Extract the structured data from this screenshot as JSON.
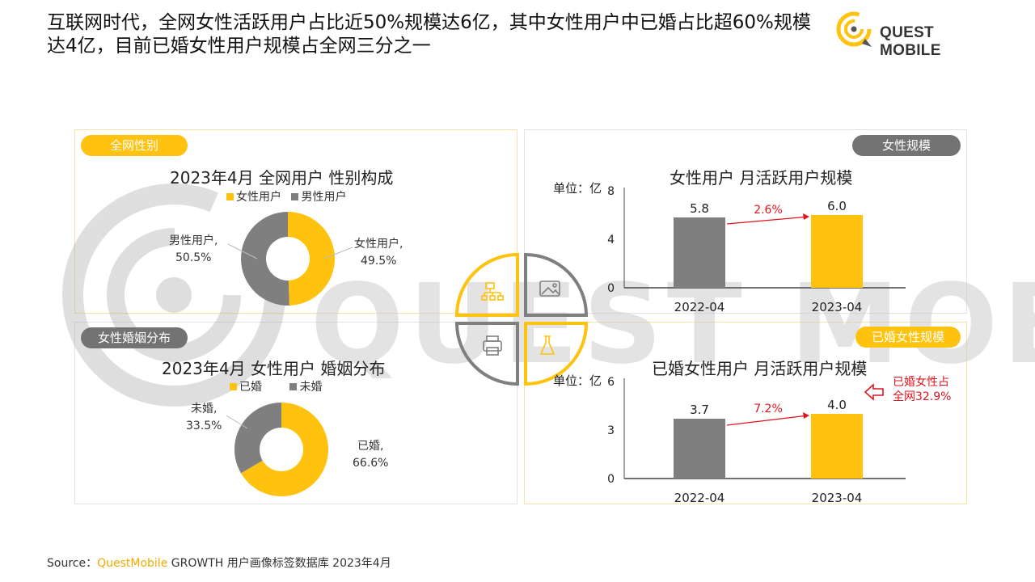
{
  "title": "互联网时代，全网女性活跃用户占比近50%规模达6亿，其中女性用户中已婚占比超60%规模达4亿，目前已婚女性用户规模占全网三分之一",
  "logo": {
    "text": "QUEST MOBILE"
  },
  "watermark": {
    "text": "QUEST MOBILE"
  },
  "colors": {
    "accent": "#ffc20e",
    "gray": "#7f7f7f",
    "red": "#e0141e"
  },
  "panels": {
    "gender": {
      "tag": "全网性别",
      "chart_title": "2023年4月 全网用户 性别构成",
      "legend": [
        "女性用户",
        "男性用户"
      ],
      "labels": [
        {
          "name": "女性用户,",
          "value": "49.5%"
        },
        {
          "name": "男性用户,",
          "value": "50.5%"
        }
      ]
    },
    "marriage": {
      "tag": "女性婚姻分布",
      "chart_title": "2023年4月 女性用户 婚姻分布",
      "legend": [
        "已婚",
        "未婚"
      ],
      "labels": [
        {
          "name": "已婚,",
          "value": "66.6%"
        },
        {
          "name": "未婚,",
          "value": "33.5%"
        }
      ]
    },
    "female_scale": {
      "tag": "女性规模",
      "chart_title": "女性用户 月活跃用户规模",
      "unit": "单位：亿"
    },
    "married_scale": {
      "tag": "已婚女性规模",
      "chart_title": "已婚女性用户 月活跃用户规模",
      "unit": "单位：亿",
      "callout": [
        "已婚女性占",
        "全网32.9%"
      ]
    }
  },
  "chart_data": [
    {
      "type": "pie",
      "title": "2023年4月 全网用户 性别构成",
      "categories": [
        "女性用户",
        "男性用户"
      ],
      "values": [
        49.5,
        50.5
      ],
      "colors": [
        "#ffc20e",
        "#7f7f7f"
      ],
      "legend": "top"
    },
    {
      "type": "pie",
      "title": "2023年4月 女性用户 婚姻分布",
      "categories": [
        "已婚",
        "未婚"
      ],
      "values": [
        66.6,
        33.5
      ],
      "colors": [
        "#ffc20e",
        "#7f7f7f"
      ],
      "legend": "top"
    },
    {
      "type": "bar",
      "title": "女性用户 月活跃用户规模",
      "ylabel": "单位：亿",
      "categories": [
        "2022-04",
        "2023-04"
      ],
      "values": [
        5.8,
        6.0
      ],
      "data_labels": [
        "5.8",
        "6.0"
      ],
      "yticks": [
        "0",
        "4",
        "8"
      ],
      "ylim": [
        0,
        8
      ],
      "growth_label": "2.6%",
      "colors": [
        "#7f7f7f",
        "#ffc20e"
      ]
    },
    {
      "type": "bar",
      "title": "已婚女性用户 月活跃用户规模",
      "ylabel": "单位：亿",
      "categories": [
        "2022-04",
        "2023-04"
      ],
      "values": [
        3.7,
        4.0
      ],
      "data_labels": [
        "3.7",
        "4.0"
      ],
      "yticks": [
        "0",
        "3",
        "6"
      ],
      "ylim": [
        0,
        6
      ],
      "growth_label": "7.2%",
      "colors": [
        "#7f7f7f",
        "#ffc20e"
      ]
    }
  ],
  "source": {
    "prefix": "Source：",
    "brand": "QuestMobile",
    "rest": " GROWTH 用户画像标签数据库 2023年4月"
  }
}
